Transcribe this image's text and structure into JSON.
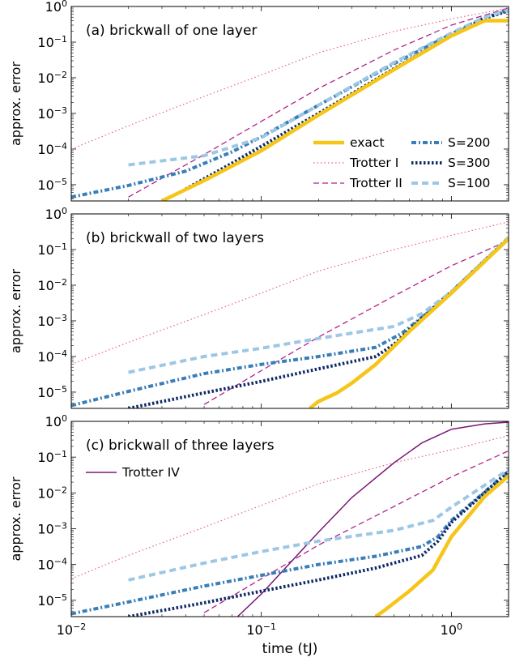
{
  "chart_data": {
    "type": "line",
    "x_scale": "log",
    "y_scale": "log",
    "xlim": [
      0.01,
      2
    ],
    "ylim": [
      3.5e-06,
      1
    ],
    "xlabel": "time (tJ)",
    "ylabel": "approx. error",
    "x_ticks": [
      {
        "value": 0.01,
        "base": "10",
        "exp": "−2"
      },
      {
        "value": 0.1,
        "base": "10",
        "exp": "−1"
      },
      {
        "value": 1,
        "base": "10",
        "exp": "0"
      }
    ],
    "y_ticks": [
      {
        "value": 1,
        "base": "10",
        "exp": "0"
      },
      {
        "value": 0.1,
        "base": "10",
        "exp": "−1"
      },
      {
        "value": 0.01,
        "base": "10",
        "exp": "−2"
      },
      {
        "value": 0.001,
        "base": "10",
        "exp": "−3"
      },
      {
        "value": 0.0001,
        "base": "10",
        "exp": "−4"
      },
      {
        "value": 1e-05,
        "base": "10",
        "exp": "−5"
      }
    ],
    "styles": {
      "exact": {
        "color": "#f5c518",
        "width": 4.5,
        "dash": ""
      },
      "Trotter I": {
        "color": "#e8637c",
        "width": 1.2,
        "dash": "1.5,3"
      },
      "Trotter II": {
        "color": "#b0228a",
        "width": 1.3,
        "dash": "7,4"
      },
      "Trotter IV": {
        "color": "#7a1878",
        "width": 1.5,
        "dash": ""
      },
      "S=200": {
        "color": "#3a7eb7",
        "width": 4,
        "dash": "6,3,2,3"
      },
      "S=300": {
        "color": "#0f2a66",
        "width": 4,
        "dash": "2.5,2.5"
      },
      "S=100": {
        "color": "#9dc7e4",
        "width": 4,
        "dash": "8,5"
      }
    },
    "panels": [
      {
        "title": "(a) brickwall of one layer",
        "legend": {
          "left": [
            "exact",
            "Trotter I",
            "Trotter II"
          ],
          "right": [
            "S=200",
            "S=300",
            "S=100"
          ]
        },
        "series": [
          {
            "name": "Trotter I",
            "x": [
              0.01,
              0.02,
              0.05,
              0.1,
              0.2,
              0.5,
              1,
              2
            ],
            "y": [
              0.0001,
              0.00045,
              0.003,
              0.012,
              0.05,
              0.2,
              0.45,
              0.9
            ]
          },
          {
            "name": "Trotter II",
            "x": [
              0.02,
              0.05,
              0.1,
              0.2,
              0.5,
              1,
              2
            ],
            "y": [
              4.5e-06,
              7e-05,
              0.0006,
              0.005,
              0.06,
              0.3,
              0.9
            ]
          },
          {
            "name": "S=200",
            "x": [
              0.01,
              0.02,
              0.04,
              0.07,
              0.1,
              0.2,
              0.5,
              1,
              1.5,
              2
            ],
            "y": [
              4.5e-06,
              9.5e-06,
              2.4e-05,
              8.3e-05,
              0.00022,
              0.0017,
              0.025,
              0.17,
              0.5,
              0.78
            ]
          },
          {
            "name": "S=300",
            "x": [
              0.04,
              0.07,
              0.1,
              0.2,
              0.5,
              1,
              1.5,
              2
            ],
            "y": [
              7.5e-06,
              4e-05,
              0.00012,
              0.001,
              0.018,
              0.15,
              0.47,
              0.75
            ]
          },
          {
            "name": "S=100",
            "x": [
              0.02,
              0.05,
              0.1,
              0.2,
              0.5,
              1,
              1.5,
              2
            ],
            "y": [
              3.6e-05,
              6.5e-05,
              0.00021,
              0.0017,
              0.027,
              0.18,
              0.5,
              0.8
            ]
          },
          {
            "name": "exact",
            "x": [
              0.03,
              0.05,
              0.1,
              0.2,
              0.5,
              1,
              1.5,
              2
            ],
            "y": [
              3.5e-06,
              1.3e-05,
              9e-05,
              0.0009,
              0.017,
              0.15,
              0.4,
              0.4
            ]
          }
        ]
      },
      {
        "title": "(b) brickwall of two layers",
        "legend": null,
        "series": [
          {
            "name": "Trotter I",
            "x": [
              0.01,
              0.02,
              0.05,
              0.1,
              0.2,
              0.5,
              1,
              2
            ],
            "y": [
              6e-05,
              0.00025,
              0.0015,
              0.006,
              0.025,
              0.1,
              0.25,
              0.6
            ]
          },
          {
            "name": "Trotter II",
            "x": [
              0.05,
              0.1,
              0.2,
              0.5,
              1,
              2
            ],
            "y": [
              4.5e-06,
              4e-05,
              0.00035,
              0.005,
              0.035,
              0.18
            ]
          },
          {
            "name": "S=200",
            "x": [
              0.01,
              0.02,
              0.05,
              0.1,
              0.2,
              0.4,
              0.55,
              0.8,
              1,
              2
            ],
            "y": [
              4.2e-06,
              1.05e-05,
              3.3e-05,
              6e-05,
              0.0001,
              0.00018,
              0.00045,
              0.0022,
              0.0065,
              0.2
            ]
          },
          {
            "name": "S=300",
            "x": [
              0.02,
              0.05,
              0.1,
              0.2,
              0.4,
              0.5,
              0.7,
              1,
              2
            ],
            "y": [
              3.5e-06,
              9.5e-06,
              2e-05,
              4.5e-05,
              0.0001,
              0.00022,
              0.0012,
              0.0065,
              0.21
            ]
          },
          {
            "name": "S=100",
            "x": [
              0.02,
              0.05,
              0.1,
              0.2,
              0.5,
              0.7,
              1,
              2
            ],
            "y": [
              3.6e-05,
              0.0001,
              0.00017,
              0.00032,
              0.0007,
              0.0016,
              0.0065,
              0.22
            ]
          },
          {
            "name": "exact",
            "x": [
              0.18,
              0.2,
              0.25,
              0.3,
              0.4,
              0.6,
              1,
              2
            ],
            "y": [
              3.5e-06,
              5.5e-06,
              9.5e-06,
              1.8e-05,
              6e-05,
              0.0005,
              0.006,
              0.2
            ]
          }
        ]
      },
      {
        "title": "(c) brickwall of three layers",
        "legend": {
          "left": [
            "Trotter IV"
          ],
          "right": []
        },
        "series": [
          {
            "name": "Trotter I",
            "x": [
              0.01,
              0.02,
              0.05,
              0.1,
              0.2,
              0.5,
              1,
              2
            ],
            "y": [
              4e-05,
              0.00018,
              0.0011,
              0.0045,
              0.018,
              0.07,
              0.16,
              0.4
            ]
          },
          {
            "name": "Trotter II",
            "x": [
              0.05,
              0.1,
              0.2,
              0.5,
              1,
              2
            ],
            "y": [
              4.5e-06,
              4e-05,
              0.00035,
              0.0042,
              0.028,
              0.15
            ]
          },
          {
            "name": "Trotter IV",
            "x": [
              0.075,
              0.1,
              0.2,
              0.3,
              0.5,
              0.7,
              1,
              1.5,
              2
            ],
            "y": [
              3.5e-06,
              1.5e-05,
              0.0008,
              0.0075,
              0.07,
              0.25,
              0.6,
              0.85,
              0.95
            ]
          },
          {
            "name": "S=200",
            "x": [
              0.01,
              0.02,
              0.05,
              0.1,
              0.2,
              0.4,
              0.7,
              0.85,
              1,
              2
            ],
            "y": [
              4.2e-06,
              9e-06,
              2.5e-05,
              5e-05,
              0.0001,
              0.00017,
              0.00032,
              0.0006,
              0.0017,
              0.04
            ]
          },
          {
            "name": "S=300",
            "x": [
              0.02,
              0.05,
              0.1,
              0.2,
              0.4,
              0.7,
              0.85,
              1,
              2
            ],
            "y": [
              3.5e-06,
              8.5e-06,
              1.8e-05,
              3.7e-05,
              8e-05,
              0.00018,
              0.00045,
              0.0015,
              0.04
            ]
          },
          {
            "name": "S=100",
            "x": [
              0.02,
              0.05,
              0.1,
              0.2,
              0.5,
              0.8,
              1,
              2
            ],
            "y": [
              3.7e-05,
              0.00011,
              0.00023,
              0.00045,
              0.0009,
              0.0017,
              0.004,
              0.045
            ]
          },
          {
            "name": "exact",
            "x": [
              0.4,
              0.45,
              0.5,
              0.6,
              0.8,
              1,
              1.5,
              2
            ],
            "y": [
              3.5e-06,
              5.5e-06,
              8.5e-06,
              1.8e-05,
              7e-05,
              0.0006,
              0.008,
              0.03
            ]
          }
        ]
      }
    ]
  }
}
